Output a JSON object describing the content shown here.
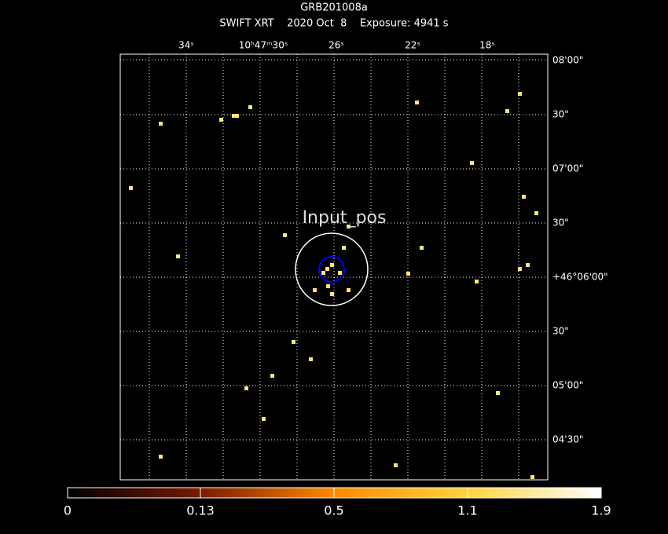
{
  "header": {
    "title": "GRB201008a",
    "subtitle": "SWIFT XRT    2020 Oct  8    Exposure: 4941 s"
  },
  "ra_labels": [
    "34ˢ",
    "10ʰ47ᵐ30ˢ",
    "26ˢ",
    "22ˢ",
    "18ˢ"
  ],
  "dec_labels": [
    "08'00\"",
    "30\"",
    "07'00\"",
    "30\"",
    "+46°06'00\"",
    "30\"",
    "05'00\"",
    "04'30\""
  ],
  "source_label": "Input_pos",
  "colorbar_labels": [
    "0",
    "0.13",
    "0.5",
    "1.1",
    "1.9"
  ]
}
